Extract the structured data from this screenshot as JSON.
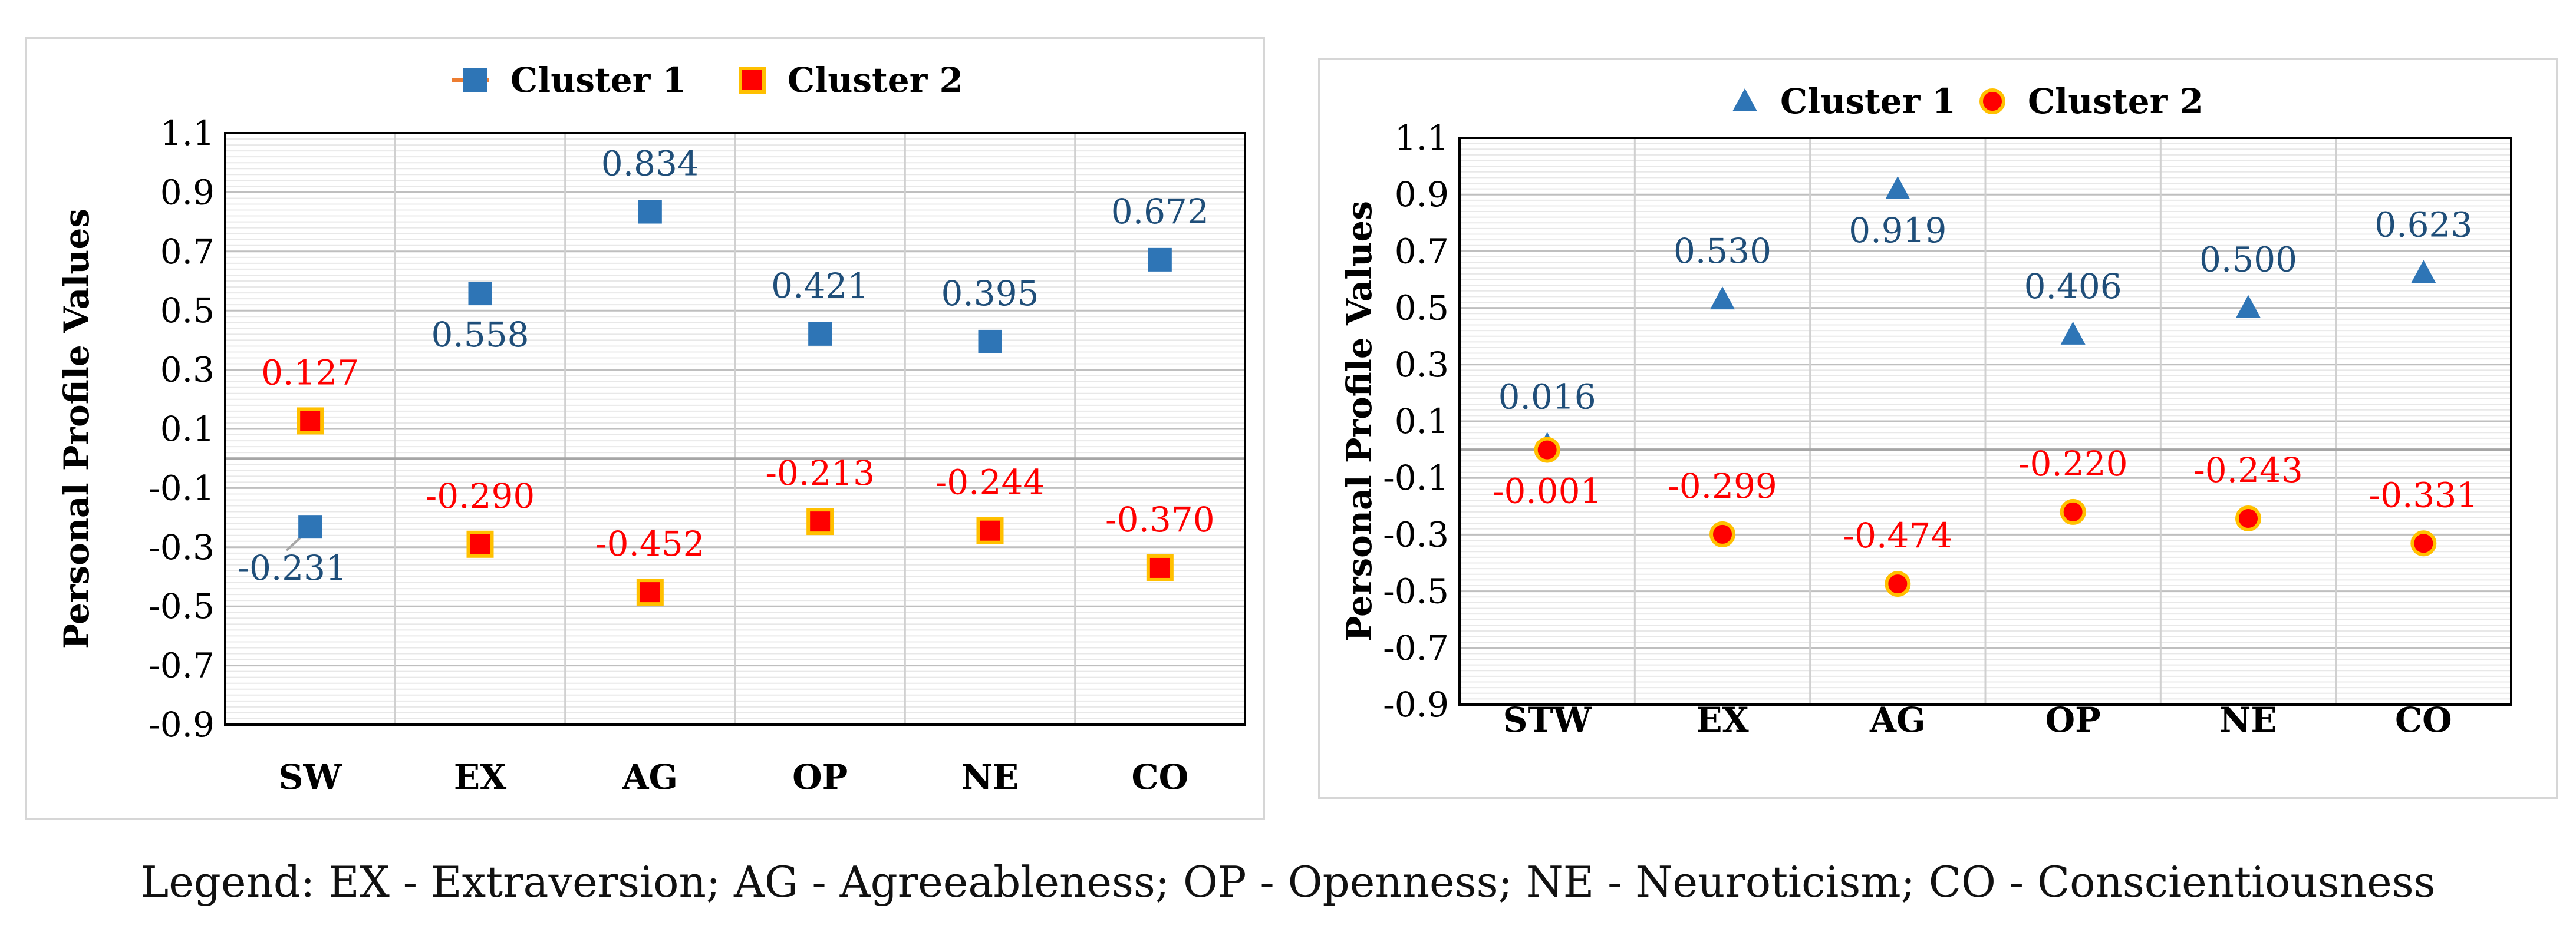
{
  "chart_data": [
    {
      "type": "scatter",
      "title": "",
      "xlabel": "",
      "ylabel": "Personal Profile Values",
      "ylim": [
        -0.9,
        1.1
      ],
      "yticks": [
        "1.1",
        "0.9",
        "0.7",
        "0.5",
        "0.3",
        "0.1",
        "-0.1",
        "-0.3",
        "-0.5",
        "-0.7",
        "-0.9"
      ],
      "grid": true,
      "legend_position": "top",
      "categories": [
        "SW",
        "EX",
        "AG",
        "OP",
        "NE",
        "CO"
      ],
      "series": [
        {
          "name": "Cluster 1",
          "marker": "square",
          "color": "#2e75b6",
          "label_color": "#1f4e79",
          "legend_line_color": "#ed7d31",
          "values": [
            -0.231,
            0.558,
            0.834,
            0.421,
            0.395,
            0.672
          ],
          "labels": [
            "-0.231",
            "0.558",
            "0.834",
            "0.421",
            "0.395",
            "0.672"
          ]
        },
        {
          "name": "Cluster 2",
          "marker": "square-outlined",
          "color": "#ff0000",
          "edge": "#ffc000",
          "label_color": "#ff0000",
          "values": [
            0.127,
            -0.29,
            -0.452,
            -0.213,
            -0.244,
            -0.37
          ],
          "labels": [
            "0.127",
            "-0.290",
            "-0.452",
            "-0.213",
            "-0.244",
            "-0.370"
          ]
        }
      ]
    },
    {
      "type": "scatter",
      "title": "",
      "xlabel": "",
      "ylabel": "Personal Profile Values",
      "ylim": [
        -0.9,
        1.1
      ],
      "yticks": [
        "1.1",
        "0.9",
        "0.7",
        "0.5",
        "0.3",
        "0.1",
        "-0.1",
        "-0.3",
        "-0.5",
        "-0.7",
        "-0.9"
      ],
      "grid": true,
      "legend_position": "top",
      "categories": [
        "STW",
        "EX",
        "AG",
        "OP",
        "NE",
        "CO"
      ],
      "series": [
        {
          "name": "Cluster 1",
          "marker": "triangle",
          "color": "#2e75b6",
          "label_color": "#1f4e79",
          "values": [
            0.016,
            0.53,
            0.919,
            0.406,
            0.5,
            0.623
          ],
          "labels": [
            "0.016",
            "0.530",
            "0.919",
            "0.406",
            "0.500",
            "0.623"
          ]
        },
        {
          "name": "Cluster 2",
          "marker": "circle",
          "color": "#ff0000",
          "edge": "#ffc000",
          "label_color": "#ff0000",
          "values": [
            -0.001,
            -0.299,
            -0.474,
            -0.22,
            -0.243,
            -0.331
          ],
          "labels": [
            "-0.001",
            "-0.299",
            "-0.474",
            "-0.220",
            "-0.243",
            "-0.331"
          ]
        }
      ]
    }
  ],
  "caption": "Legend: EX - Extraversion; AG - Agreeableness; OP - Openness; NE - Neuroticism; CO - Conscientiousness"
}
